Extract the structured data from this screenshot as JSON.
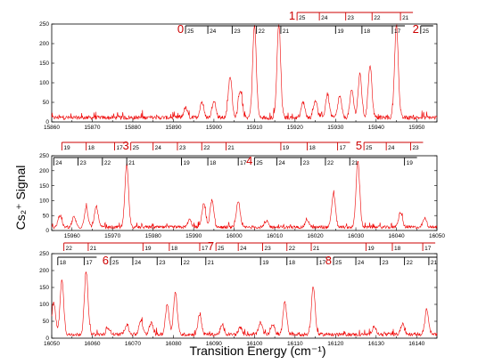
{
  "chart_data": [
    {
      "type": "line",
      "panel": "top",
      "x_range": [
        15860,
        15955
      ],
      "ylim": [
        0,
        250
      ],
      "x_ticks": [
        15860,
        15870,
        15880,
        15890,
        15900,
        15910,
        15920,
        15930,
        15940,
        15950
      ],
      "y_ticks": [
        0,
        50,
        100,
        150,
        200,
        250
      ],
      "series_color": "#ee0000",
      "peaks": [
        {
          "x": 15893.0,
          "y": 25
        },
        {
          "x": 15897.0,
          "y": 40
        },
        {
          "x": 15900.0,
          "y": 45
        },
        {
          "x": 15904.0,
          "y": 105
        },
        {
          "x": 15906.5,
          "y": 70
        },
        {
          "x": 15910.0,
          "y": 235
        },
        {
          "x": 15916.0,
          "y": 240
        },
        {
          "x": 15922.0,
          "y": 40
        },
        {
          "x": 15925.0,
          "y": 45
        },
        {
          "x": 15928.0,
          "y": 60
        },
        {
          "x": 15931.0,
          "y": 55
        },
        {
          "x": 15934.0,
          "y": 70
        },
        {
          "x": 15936.0,
          "y": 110
        },
        {
          "x": 15938.5,
          "y": 135
        },
        {
          "x": 15945.0,
          "y": 240
        }
      ],
      "progressions": [
        {
          "label": "1",
          "color": "#cc0000",
          "ticks": [
            {
              "x": 15920.5,
              "text": "25"
            },
            {
              "x": 15926.0,
              "text": "24"
            },
            {
              "x": 15932.5,
              "text": "23"
            },
            {
              "x": 15939.0,
              "text": "22"
            },
            {
              "x": 15946.0,
              "text": "21"
            }
          ]
        },
        {
          "label": "0",
          "color": "#000000",
          "ticks": [
            {
              "x": 15893.0,
              "text": "25"
            },
            {
              "x": 15898.5,
              "text": "24"
            },
            {
              "x": 15904.5,
              "text": "23"
            },
            {
              "x": 15910.5,
              "text": "22"
            },
            {
              "x": 15916.5,
              "text": "21"
            },
            {
              "x": 15930.0,
              "text": "19"
            },
            {
              "x": 15936.5,
              "text": "18"
            },
            {
              "x": 15944.0,
              "text": "17"
            }
          ]
        },
        {
          "label": "2",
          "color": "#000000",
          "ticks": [
            {
              "x": 15951.0,
              "text": "25"
            }
          ]
        }
      ]
    },
    {
      "type": "line",
      "panel": "middle",
      "x_range": [
        15955,
        16050
      ],
      "ylim": [
        0,
        250
      ],
      "x_ticks": [
        15960,
        15970,
        15980,
        15990,
        16000,
        16010,
        16020,
        16030,
        16040,
        16050
      ],
      "y_ticks": [
        0,
        50,
        100,
        150,
        200,
        250
      ],
      "series_color": "#ee0000",
      "peaks": [
        {
          "x": 15957.0,
          "y": 40
        },
        {
          "x": 15960.5,
          "y": 35
        },
        {
          "x": 15963.5,
          "y": 65
        },
        {
          "x": 15966.0,
          "y": 70
        },
        {
          "x": 15973.5,
          "y": 210
        },
        {
          "x": 15989.0,
          "y": 25
        },
        {
          "x": 15992.5,
          "y": 80
        },
        {
          "x": 15994.5,
          "y": 90
        },
        {
          "x": 16001.0,
          "y": 85
        },
        {
          "x": 16008.0,
          "y": 20
        },
        {
          "x": 16018.0,
          "y": 25
        },
        {
          "x": 16024.5,
          "y": 115
        },
        {
          "x": 16030.5,
          "y": 220
        },
        {
          "x": 16041.0,
          "y": 50
        },
        {
          "x": 16047.0,
          "y": 30
        }
      ],
      "progressions": [
        {
          "label": "",
          "color": "#cc0000",
          "ticks": [
            {
              "x": 15957.5,
              "text": "19"
            },
            {
              "x": 15963.5,
              "text": "18"
            },
            {
              "x": 15970.5,
              "text": "17"
            }
          ]
        },
        {
          "label": "3",
          "color": "#cc0000",
          "ticks": [
            {
              "x": 15974.5,
              "text": "25"
            },
            {
              "x": 15980.0,
              "text": "24"
            },
            {
              "x": 15986.0,
              "text": "23"
            },
            {
              "x": 15992.0,
              "text": "22"
            },
            {
              "x": 15998.0,
              "text": "21"
            },
            {
              "x": 16011.5,
              "text": "19"
            },
            {
              "x": 16018.0,
              "text": "18"
            },
            {
              "x": 16025.5,
              "text": "17"
            }
          ]
        },
        {
          "label": "5",
          "color": "#cc0000",
          "ticks": [
            {
              "x": 16032.0,
              "text": "25"
            },
            {
              "x": 16037.5,
              "text": "24"
            },
            {
              "x": 16043.5,
              "text": "23"
            }
          ]
        },
        {
          "label": "",
          "color": "#000000",
          "ticks": [
            {
              "x": 15955.5,
              "text": "24"
            },
            {
              "x": 15961.5,
              "text": "23"
            },
            {
              "x": 15967.5,
              "text": "22"
            },
            {
              "x": 15973.5,
              "text": "21"
            },
            {
              "x": 15987.0,
              "text": "19"
            },
            {
              "x": 15993.5,
              "text": "18"
            },
            {
              "x": 16001.0,
              "text": "17"
            }
          ]
        },
        {
          "label": "4",
          "color": "#000000",
          "ticks": [
            {
              "x": 16005.0,
              "text": "25"
            },
            {
              "x": 16010.5,
              "text": "24"
            },
            {
              "x": 16016.5,
              "text": "23"
            },
            {
              "x": 16022.5,
              "text": "22"
            },
            {
              "x": 16028.5,
              "text": "21"
            },
            {
              "x": 16042.0,
              "text": "19"
            }
          ]
        }
      ]
    },
    {
      "type": "line",
      "panel": "bottom",
      "x_range": [
        16050,
        16145
      ],
      "ylim": [
        0,
        250
      ],
      "x_ticks": [
        16050,
        16060,
        16070,
        16080,
        16090,
        16100,
        16110,
        16120,
        16130,
        16140
      ],
      "y_ticks": [
        0,
        50,
        100,
        150,
        200,
        250
      ],
      "series_color": "#ee0000",
      "x_label": "Transition Energy (cm⁻¹)",
      "peaks": [
        {
          "x": 16050.5,
          "y": 95
        },
        {
          "x": 16052.5,
          "y": 160
        },
        {
          "x": 16058.5,
          "y": 185
        },
        {
          "x": 16064.0,
          "y": 20
        },
        {
          "x": 16068.5,
          "y": 30
        },
        {
          "x": 16072.0,
          "y": 40
        },
        {
          "x": 16074.5,
          "y": 35
        },
        {
          "x": 16078.5,
          "y": 90
        },
        {
          "x": 16080.5,
          "y": 125
        },
        {
          "x": 16086.5,
          "y": 60
        },
        {
          "x": 16092.0,
          "y": 25
        },
        {
          "x": 16096.5,
          "y": 20
        },
        {
          "x": 16101.5,
          "y": 35
        },
        {
          "x": 16104.5,
          "y": 30
        },
        {
          "x": 16107.5,
          "y": 95
        },
        {
          "x": 16114.5,
          "y": 140
        },
        {
          "x": 16129.5,
          "y": 25
        },
        {
          "x": 16136.5,
          "y": 30
        },
        {
          "x": 16142.5,
          "y": 75
        }
      ],
      "progressions": [
        {
          "label": "",
          "color": "#cc0000",
          "ticks": [
            {
              "x": 16053.0,
              "text": "22"
            },
            {
              "x": 16059.0,
              "text": "21"
            },
            {
              "x": 16072.5,
              "text": "19"
            },
            {
              "x": 16079.0,
              "text": "18"
            },
            {
              "x": 16086.5,
              "text": "17"
            }
          ]
        },
        {
          "label": "7",
          "color": "#cc0000",
          "ticks": [
            {
              "x": 16090.5,
              "text": "25"
            },
            {
              "x": 16096.0,
              "text": "24"
            },
            {
              "x": 16102.0,
              "text": "23"
            },
            {
              "x": 16108.0,
              "text": "22"
            },
            {
              "x": 16114.0,
              "text": "21"
            },
            {
              "x": 16127.5,
              "text": "19"
            },
            {
              "x": 16134.0,
              "text": "18"
            },
            {
              "x": 16141.5,
              "text": "17"
            }
          ]
        },
        {
          "label": "",
          "color": "#000000",
          "ticks": [
            {
              "x": 16051.5,
              "text": "18"
            },
            {
              "x": 16058.0,
              "text": "17"
            }
          ]
        },
        {
          "label": "6",
          "color": "#000000",
          "ticks": [
            {
              "x": 16064.5,
              "text": "25"
            },
            {
              "x": 16070.0,
              "text": "24"
            },
            {
              "x": 16076.0,
              "text": "23"
            },
            {
              "x": 16082.0,
              "text": "22"
            },
            {
              "x": 16088.0,
              "text": "21"
            },
            {
              "x": 16101.5,
              "text": "19"
            },
            {
              "x": 16108.0,
              "text": "18"
            },
            {
              "x": 16115.5,
              "text": "17"
            }
          ]
        },
        {
          "label": "8",
          "color": "#000000",
          "ticks": [
            {
              "x": 16119.5,
              "text": "25"
            },
            {
              "x": 16125.0,
              "text": "24"
            },
            {
              "x": 16131.0,
              "text": "23"
            },
            {
              "x": 16137.0,
              "text": "22"
            },
            {
              "x": 16143.0,
              "text": "21"
            }
          ]
        }
      ]
    }
  ],
  "y_label": "Cs₂⁺ Signal"
}
